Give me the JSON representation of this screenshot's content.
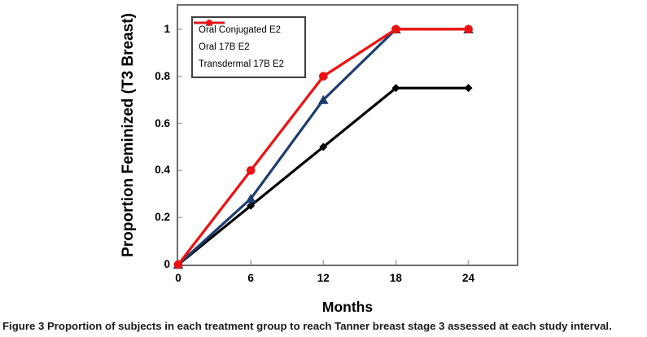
{
  "figure": {
    "caption_prefix": "Figure 3",
    "caption_text": "Proportion of subjects in each treatment group to reach Tanner breast stage 3 assessed at each study interval."
  },
  "chart_data": {
    "type": "line",
    "title": "",
    "xlabel": "Months",
    "ylabel": "Proportion Feminized (T3 Breast)",
    "x": [
      0,
      6,
      12,
      18,
      24
    ],
    "xtick_labels": [
      "0",
      "6",
      "12",
      "18",
      "24"
    ],
    "ytick_labels": [
      "0",
      "0.2",
      "0.4",
      "0.6",
      "0.8",
      "1"
    ],
    "xlim": [
      0,
      28
    ],
    "ylim": [
      0,
      1.1
    ],
    "grid": false,
    "legend_position": "top-left",
    "series": [
      {
        "name": "Oral Conjugated E2",
        "color": "#000000",
        "marker": "diamond",
        "values": [
          0,
          0.25,
          0.5,
          0.75,
          0.75
        ]
      },
      {
        "name": "Oral 17B E2",
        "color": "#1c3d6e",
        "marker": "triangle",
        "values": [
          0,
          0.28,
          0.7,
          1.0,
          1.0
        ]
      },
      {
        "name": "Transdermal 17B E2",
        "color": "#ee1111",
        "marker": "circle",
        "values": [
          0,
          0.4,
          0.8,
          1.0,
          1.0
        ]
      }
    ],
    "axis_color": "#6e6e6e",
    "tick_color": "#b0b0b0"
  }
}
